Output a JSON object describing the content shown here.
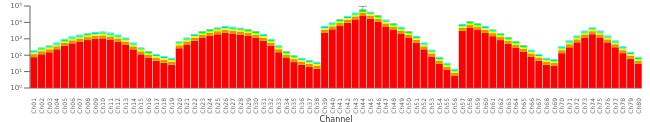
{
  "chart_data": {
    "type": "bar",
    "stacked": true,
    "log": "y",
    "grid": false,
    "xlabel": "Channel",
    "categories": [
      "Ch01",
      "Ch02",
      "Ch03",
      "Ch04",
      "Ch05",
      "Ch06",
      "Ch07",
      "Ch08",
      "Ch09",
      "Ch10",
      "Ch11",
      "Ch12",
      "Ch13",
      "Ch14",
      "Ch15",
      "Ch16",
      "Ch17",
      "Ch18",
      "Ch19",
      "Ch20",
      "Ch21",
      "Ch22",
      "Ch23",
      "Ch24",
      "Ch25",
      "Ch26",
      "Ch27",
      "Ch28",
      "Ch29",
      "Ch30",
      "Ch31",
      "Ch32",
      "Ch33",
      "Ch34",
      "Ch35",
      "Ch36",
      "Ch37",
      "Ch38",
      "Ch39",
      "Ch40",
      "Ch41",
      "Ch42",
      "Ch43",
      "Ch44",
      "Ch45",
      "Ch46",
      "Ch47",
      "Ch48",
      "Ch49",
      "Ch50",
      "Ch51",
      "Ch52",
      "Ch53",
      "Ch54",
      "Ch55",
      "Ch56",
      "Ch57",
      "Ch58",
      "Ch59",
      "Ch60",
      "Ch61",
      "Ch62",
      "Ch63",
      "Ch64",
      "Ch65",
      "Ch66",
      "Ch67",
      "Ch68",
      "Ch69",
      "Ch70",
      "Ch71",
      "Ch72",
      "Ch73",
      "Ch74",
      "Ch75",
      "Ch76",
      "Ch77",
      "Ch78",
      "Ch79",
      "Ch80"
    ],
    "series": [
      {
        "color": "#FF0000",
        "values": [
          76,
          114,
          152,
          228,
          380,
          532,
          684,
          836,
          988,
          1064,
          912,
          684,
          456,
          228,
          114,
          68.4,
          45.6,
          34.2,
          26.6,
          266,
          456,
          760,
          1140,
          1520,
          1900,
          2280,
          2090,
          1824,
          1520,
          1140,
          760,
          380,
          152,
          68.4,
          38,
          26.6,
          19,
          15.2,
          2280,
          3800,
          6080,
          9500,
          15200,
          24700,
          17100,
          10640,
          5700,
          3420,
          2090,
          1140,
          570,
          228,
          83.6,
          30.4,
          13.3,
          5.7,
          3040,
          4560,
          3420,
          2280,
          1444,
          836,
          494,
          285,
          159.6,
          83.6,
          45.6,
          26.6,
          22.8,
          133,
          304,
          608,
          1216,
          1900,
          1216,
          608,
          304,
          133,
          60.8,
          30.4
        ]
      },
      {
        "color": "#FF8800",
        "values": [
          40,
          60,
          80,
          120,
          200,
          280,
          360,
          440,
          520,
          560,
          480,
          360,
          240,
          120,
          60,
          36,
          24,
          18,
          14,
          140,
          240,
          400,
          600,
          800,
          1000,
          1200,
          1100,
          960,
          800,
          600,
          400,
          200,
          80,
          36,
          20,
          14,
          10,
          8,
          1200,
          2000,
          3200,
          5000,
          8000,
          13000,
          9000,
          5600,
          3000,
          1800,
          1100,
          600,
          300,
          120,
          44,
          16,
          7,
          3,
          1600,
          2400,
          1800,
          1200,
          760,
          440,
          260,
          150,
          84,
          44,
          24,
          14,
          12,
          70,
          160,
          320,
          640,
          1000,
          640,
          320,
          160,
          70,
          32,
          16
        ]
      },
      {
        "color": "#FFFF00",
        "values": [
          32,
          48,
          64,
          96,
          160,
          224,
          288,
          352,
          416,
          448,
          384,
          288,
          192,
          96,
          48,
          28.8,
          19.2,
          14.4,
          11.2,
          112,
          192,
          320,
          480,
          640,
          800,
          960,
          880,
          768,
          640,
          480,
          320,
          160,
          64,
          28.8,
          16,
          11.2,
          8,
          6.4,
          960,
          1600,
          2560,
          4000,
          6400,
          10400,
          7200,
          4480,
          2400,
          1440,
          880,
          480,
          240,
          96,
          35.2,
          12.8,
          5.6,
          2.4,
          1280,
          1920,
          1440,
          960,
          608,
          352,
          208,
          120,
          67.2,
          35.2,
          19.2,
          11.2,
          9.6,
          56,
          128,
          256,
          512,
          800,
          512,
          256,
          128,
          56,
          25.6,
          12.8
        ]
      },
      {
        "color": "#00FF00",
        "values": [
          28,
          42,
          56,
          84,
          140,
          196,
          252,
          308,
          364,
          392,
          336,
          252,
          168,
          84,
          42,
          25.2,
          16.8,
          12.6,
          9.8,
          98,
          168,
          280,
          420,
          560,
          700,
          840,
          770,
          672,
          560,
          420,
          280,
          140,
          56,
          25.2,
          14,
          9.8,
          7,
          5.6,
          840,
          1400,
          2240,
          3500,
          5600,
          9100,
          6300,
          3920,
          2100,
          1260,
          770,
          420,
          210,
          84,
          30.8,
          11.2,
          4.9,
          2.1,
          1120,
          1680,
          1260,
          840,
          532,
          308,
          182,
          105,
          58.8,
          30.8,
          16.8,
          9.8,
          8.4,
          49,
          112,
          224,
          448,
          700,
          448,
          224,
          112,
          49,
          22.4,
          11.2
        ]
      },
      {
        "color": "#00FFFF",
        "values": [
          24,
          36,
          48,
          72,
          120,
          168,
          216,
          264,
          312,
          336,
          288,
          216,
          144,
          72,
          36,
          21.6,
          14.4,
          10.8,
          8.4,
          84,
          144,
          240,
          360,
          480,
          600,
          720,
          660,
          576,
          480,
          360,
          240,
          120,
          48,
          21.6,
          12,
          8.4,
          6,
          4.8,
          720,
          1200,
          1920,
          3000,
          4800,
          7800,
          5400,
          3360,
          1800,
          1080,
          660,
          360,
          180,
          72,
          26.4,
          9.6,
          4.2,
          1.8,
          960,
          1440,
          1080,
          720,
          456,
          264,
          156,
          90,
          50.4,
          26.4,
          14.4,
          8.4,
          7.2,
          42,
          96,
          192,
          384,
          600,
          384,
          192,
          96,
          42,
          19.2,
          9.6
        ]
      }
    ],
    "error_bars": [
      {
        "category": "Ch44",
        "value": 65000,
        "minus": 20000,
        "plus": 30000,
        "color": "#888888"
      }
    ],
    "ylim": [
      1,
      100000
    ],
    "yticks": [
      {
        "value": 1,
        "label": "10⁰"
      },
      {
        "value": 10,
        "label": "10¹"
      },
      {
        "value": 100,
        "label": "10²"
      },
      {
        "value": 1000,
        "label": "10³"
      },
      {
        "value": 10000,
        "label": "10⁴"
      },
      {
        "value": 100000,
        "label": "10⁵"
      }
    ]
  }
}
